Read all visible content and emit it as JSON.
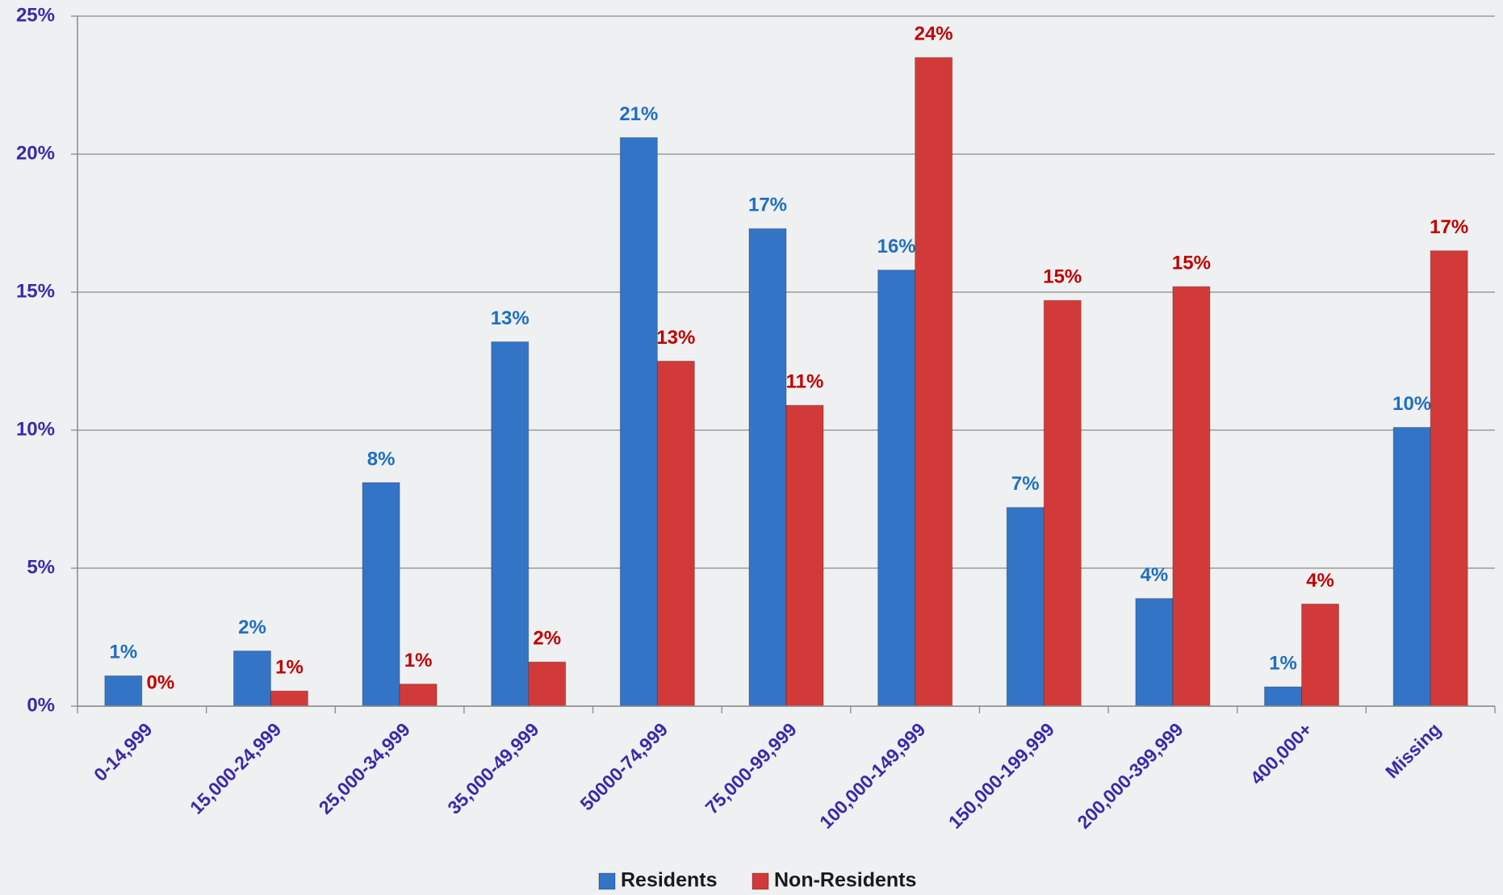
{
  "chart_data": {
    "type": "bar",
    "categories": [
      "0-14,999",
      "15,000-24,999",
      "25,000-34,999",
      "35,000-49,999",
      "50000-74,999",
      "75,000-99,999",
      "100,000-149,999",
      "150,000-199,999",
      "200,000-399,999",
      "400,000+",
      "Missing"
    ],
    "series": [
      {
        "name": "Residents",
        "color": "#3474c6",
        "label_color": "#1f6fc0",
        "values": [
          1.1,
          2.0,
          8.1,
          13.2,
          20.6,
          17.3,
          15.8,
          7.2,
          3.9,
          0.7,
          10.1
        ],
        "value_labels": [
          "1%",
          "2%",
          "8%",
          "13%",
          "21%",
          "17%",
          "16%",
          "7%",
          "4%",
          "1%",
          "10%"
        ]
      },
      {
        "name": "Non-Residents",
        "color": "#d23a3a",
        "label_color": "#c00000",
        "values": [
          0,
          0.55,
          0.8,
          1.6,
          12.5,
          10.9,
          23.5,
          14.7,
          15.2,
          3.7,
          16.5
        ],
        "value_labels": [
          "0%",
          "1%",
          "1%",
          "2%",
          "13%",
          "11%",
          "24%",
          "15%",
          "15%",
          "4%",
          "17%"
        ]
      }
    ],
    "ylim": [
      0,
      25
    ],
    "yticks": [
      {
        "value": 0,
        "label": "0%"
      },
      {
        "value": 5,
        "label": "5%"
      },
      {
        "value": 10,
        "label": "10%"
      },
      {
        "value": 15,
        "label": "15%"
      },
      {
        "value": 20,
        "label": "20%"
      },
      {
        "value": 25,
        "label": "25%"
      }
    ],
    "grid": true,
    "legend": "bottom"
  }
}
